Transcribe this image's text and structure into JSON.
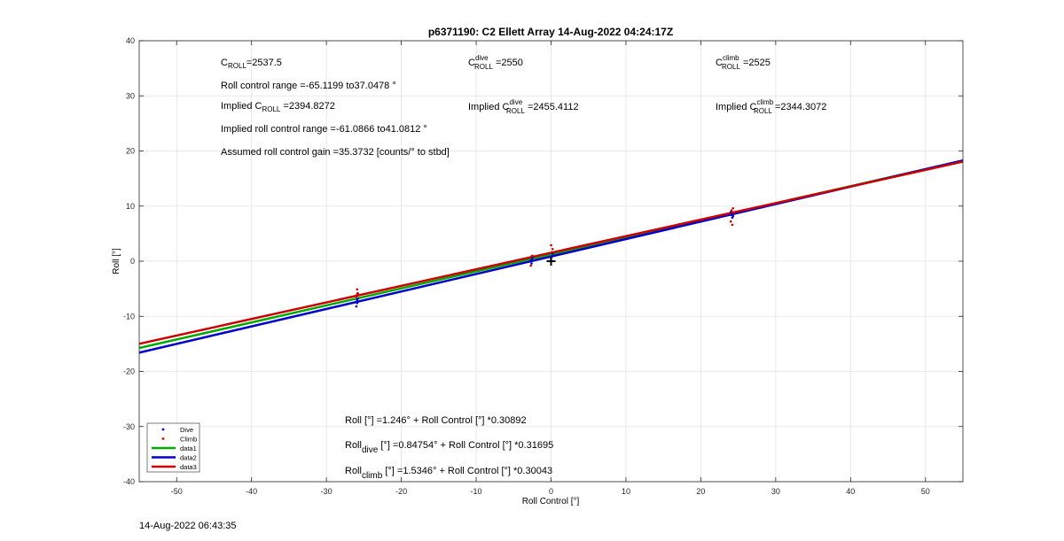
{
  "chart_data": {
    "type": "scatter",
    "title": "p6371190: C2 Ellett Array 14-Aug-2022 04:24:17Z",
    "xlabel": "Roll Control [°]",
    "ylabel": "Roll [°]",
    "xlim": [
      -55,
      55
    ],
    "ylim": [
      -40,
      40
    ],
    "xticks": [
      -50,
      -40,
      -30,
      -20,
      -10,
      0,
      10,
      20,
      30,
      40,
      50
    ],
    "yticks": [
      -40,
      -30,
      -20,
      -10,
      0,
      10,
      20,
      30,
      40
    ],
    "grid": true,
    "legend_position": "bottom-left",
    "legend": [
      {
        "label": "Dive",
        "kind": "marker",
        "color": "#0000cc"
      },
      {
        "label": "Climb",
        "kind": "marker",
        "color": "#cc0000"
      },
      {
        "label": "data1",
        "kind": "line",
        "color": "#00aa00"
      },
      {
        "label": "data2",
        "kind": "line",
        "color": "#0000cc"
      },
      {
        "label": "data3",
        "kind": "line",
        "color": "#cc0000"
      }
    ],
    "series": [
      {
        "name": "Dive",
        "type": "scatter",
        "color": "#0000cc",
        "x": [
          -25.9,
          -25.9,
          -26.0,
          -25.8,
          -25.9,
          -2.6,
          -2.7,
          -2.5,
          -2.6,
          0.1,
          0.2,
          0.0,
          24.1,
          24.2,
          24.0,
          24.3
        ],
        "y": [
          -7.0,
          -7.6,
          -8.2,
          -6.8,
          -7.3,
          0.3,
          0.0,
          0.7,
          -0.4,
          0.8,
          1.4,
          0.4,
          8.4,
          7.9,
          8.9,
          8.2
        ]
      },
      {
        "name": "Climb",
        "type": "scatter",
        "color": "#cc0000",
        "x": [
          -25.9,
          -25.8,
          -26.0,
          -25.9,
          -2.6,
          -2.5,
          -2.7,
          0.0,
          0.2,
          0.1,
          24.2,
          24.0,
          24.3,
          24.1,
          24.4
        ],
        "y": [
          -5.1,
          -5.8,
          -6.4,
          -6.0,
          0.9,
          1.0,
          -0.8,
          2.9,
          2.2,
          1.6,
          6.6,
          7.2,
          9.6,
          9.2,
          8.8
        ]
      },
      {
        "name": "data1",
        "type": "line",
        "color": "#00aa00",
        "intercept": 1.246,
        "slope": 0.30892
      },
      {
        "name": "data2",
        "type": "line",
        "color": "#0000cc",
        "intercept": 0.84754,
        "slope": 0.31695
      },
      {
        "name": "data3",
        "type": "line",
        "color": "#cc0000",
        "intercept": 1.5346,
        "slope": 0.30043
      }
    ],
    "marker": {
      "x": 0,
      "y": 0,
      "symbol": "+",
      "color": "#000000"
    },
    "annotations": {
      "croll": {
        "pre": "C",
        "sub": "ROLL",
        "post": "=2537.5"
      },
      "croll_dive": {
        "pre": "C",
        "sup": "dive",
        "sub": "ROLL",
        "post": " =2550"
      },
      "croll_climb": {
        "pre": "C",
        "sup": "climb",
        "sub": "ROLL",
        "post": " =2525"
      },
      "range": "Roll control range =-65.1199 to37.0478 °",
      "implied_croll": {
        "pre": "Implied C",
        "sub": "ROLL",
        "post": " =2394.8272"
      },
      "implied_croll_dive": {
        "pre": "Implied C",
        "sup": "dive",
        "sub": "ROLL",
        "post": " =2455.4112"
      },
      "implied_croll_climb": {
        "pre": "Implied C",
        "sup": "climb",
        "sub": "ROLL",
        "post": " =2344.3072"
      },
      "implied_range": "Implied roll control range =-61.0866 to41.0812 °",
      "gain": "Assumed roll control gain =35.3732 [counts/° to stbd]",
      "eq_all": "Roll [°] =1.246° + Roll Control [°] *0.30892",
      "eq_dive": {
        "pre": "Roll",
        "sub": "dive",
        "post": " [°] =0.84754° + Roll Control [°] *0.31695"
      },
      "eq_climb": {
        "pre": "Roll",
        "sub": "climb",
        "post": " [°] =1.5346° + Roll Control [°] *0.30043"
      }
    }
  },
  "footer": {
    "timestamp": "14-Aug-2022 06:43:35"
  }
}
